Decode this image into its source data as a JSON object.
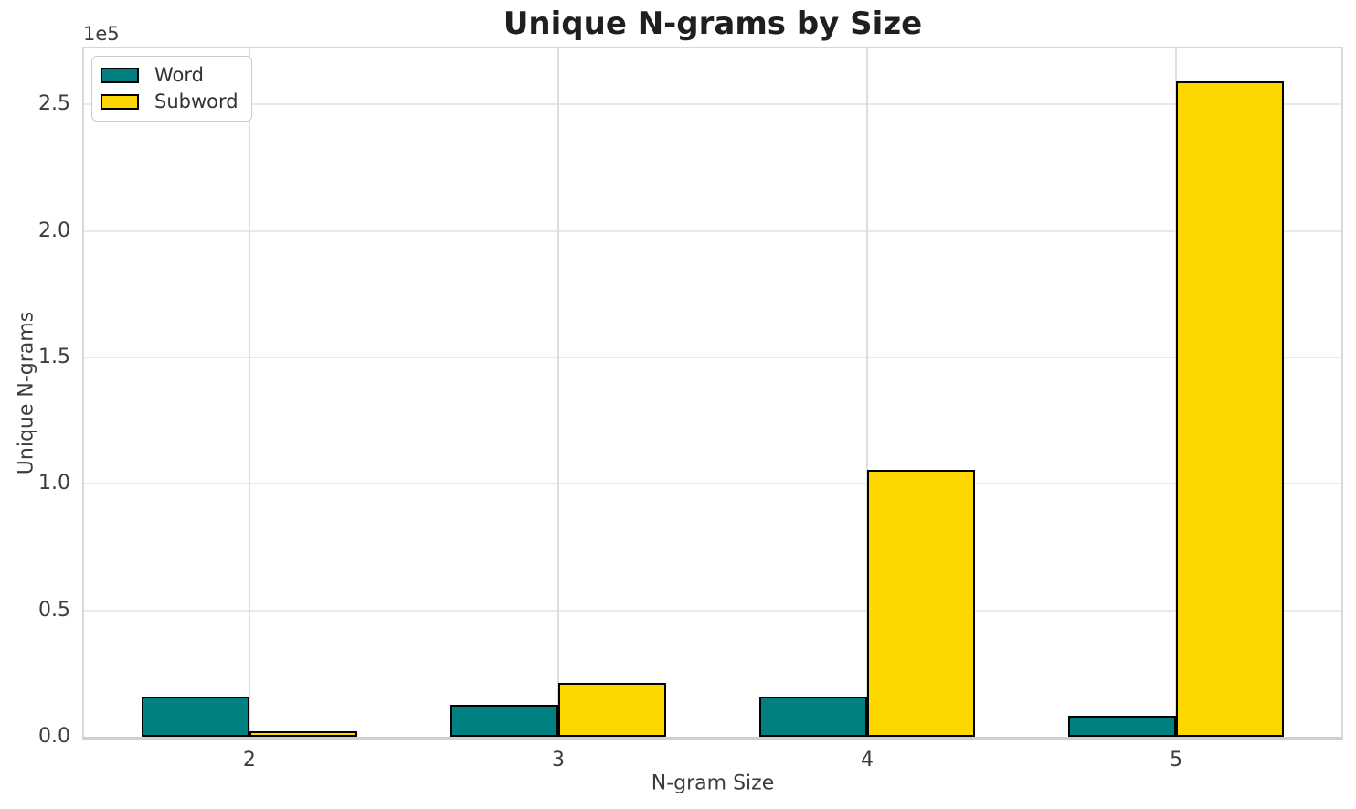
{
  "chart_data": {
    "type": "bar",
    "title": "Unique N-grams by Size",
    "xlabel": "N-gram Size",
    "ylabel": "Unique N-grams",
    "offset_text": "1e5",
    "categories": [
      "2",
      "3",
      "4",
      "5"
    ],
    "series": [
      {
        "name": "Word",
        "color": "#008080",
        "values": [
          15900,
          12500,
          16000,
          8300
        ]
      },
      {
        "name": "Subword",
        "color": "#FFD700",
        "values": [
          2300,
          21500,
          105400,
          259200
        ]
      }
    ],
    "bar_edge_color": "#000000",
    "bar_width": 0.35,
    "xlim": [
      -0.535,
      3.535
    ],
    "ylim": [
      0,
      272160
    ],
    "y_tick_values": [
      0,
      50000,
      100000,
      150000,
      200000,
      250000
    ],
    "y_tick_labels": [
      "0.0",
      "0.5",
      "1.0",
      "1.5",
      "2.0",
      "2.5"
    ],
    "grid": true,
    "legend_position": "upper left",
    "colors": {
      "grid": "#e9e9e9",
      "spine": "#d7d7d7",
      "text": "#3c3c3c",
      "title": "#1f1f1f"
    }
  }
}
